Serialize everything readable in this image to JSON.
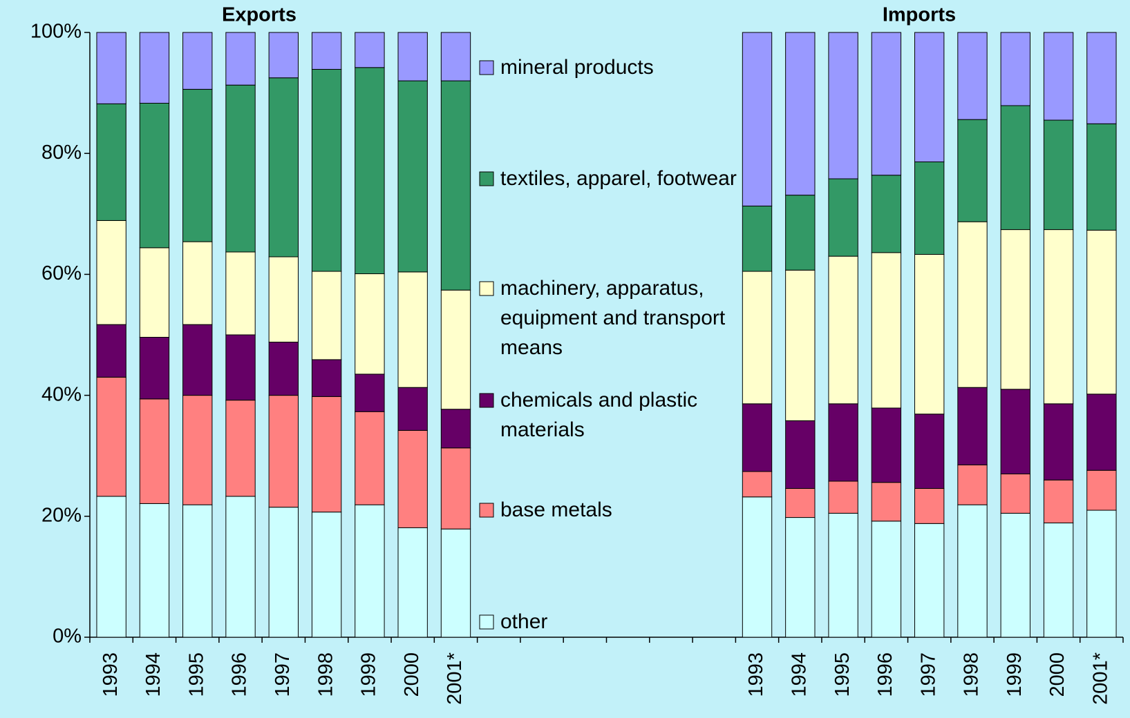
{
  "chart_data": {
    "type": "stacked_bar",
    "group_titles": [
      "Exports",
      "Imports"
    ],
    "categories": [
      "1993",
      "1994",
      "1995",
      "1996",
      "1997",
      "1998",
      "1999",
      "2000",
      "2001*",
      null,
      null,
      null,
      null,
      null,
      null,
      "1993",
      "1994",
      "1995",
      "1996",
      "1997",
      "1998",
      "1999",
      "2000",
      "2001*"
    ],
    "series": [
      {
        "name": "other",
        "color": "#ccffff",
        "values": [
          23.3,
          22.1,
          21.9,
          23.3,
          21.5,
          20.7,
          21.9,
          18.1,
          17.9,
          null,
          null,
          null,
          null,
          null,
          null,
          23.2,
          19.8,
          20.5,
          19.2,
          18.8,
          21.9,
          20.5,
          18.9,
          21.0
        ]
      },
      {
        "name": "base metals",
        "color": "#ff8080",
        "values": [
          19.7,
          17.3,
          18.1,
          15.9,
          18.5,
          19.1,
          15.4,
          16.1,
          13.4,
          null,
          null,
          null,
          null,
          null,
          null,
          4.2,
          4.8,
          5.3,
          6.4,
          5.8,
          6.6,
          6.5,
          7.1,
          6.6
        ]
      },
      {
        "name": "chemicals and plastic materials",
        "color": "#660066",
        "values": [
          8.7,
          10.2,
          11.7,
          10.8,
          8.8,
          6.1,
          6.2,
          7.1,
          6.4,
          null,
          null,
          null,
          null,
          null,
          null,
          11.2,
          11.2,
          12.8,
          12.3,
          12.3,
          12.8,
          14.0,
          12.6,
          12.6
        ]
      },
      {
        "name": "machinery, apparatus, equipment and transport means",
        "color": "#ffffcc",
        "values": [
          17.2,
          14.8,
          13.7,
          13.7,
          14.1,
          14.6,
          16.6,
          19.1,
          19.7,
          null,
          null,
          null,
          null,
          null,
          null,
          21.9,
          24.9,
          24.4,
          25.7,
          26.4,
          27.4,
          26.4,
          28.8,
          27.1
        ]
      },
      {
        "name": "textiles, apparel, footwear",
        "color": "#339966",
        "values": [
          19.3,
          23.9,
          25.2,
          27.6,
          29.6,
          33.4,
          34.1,
          31.6,
          34.6,
          null,
          null,
          null,
          null,
          null,
          null,
          10.8,
          12.4,
          12.8,
          12.8,
          15.3,
          16.9,
          20.5,
          18.1,
          17.6
        ]
      },
      {
        "name": "mineral products",
        "color": "#9999ff",
        "values": [
          11.8,
          11.7,
          9.4,
          8.7,
          7.5,
          6.1,
          5.8,
          8.0,
          8.0,
          null,
          null,
          null,
          null,
          null,
          null,
          28.7,
          26.9,
          24.2,
          23.6,
          21.4,
          14.4,
          12.1,
          14.5,
          15.1
        ]
      }
    ],
    "ylim": [
      0,
      100
    ],
    "yticks": [
      {
        "value": 0,
        "label": "0%"
      },
      {
        "value": 20,
        "label": "20%"
      },
      {
        "value": 40,
        "label": "40%"
      },
      {
        "value": 60,
        "label": "60%"
      },
      {
        "value": 80,
        "label": "80%"
      },
      {
        "value": 100,
        "label": "100%"
      }
    ],
    "grid": false
  }
}
